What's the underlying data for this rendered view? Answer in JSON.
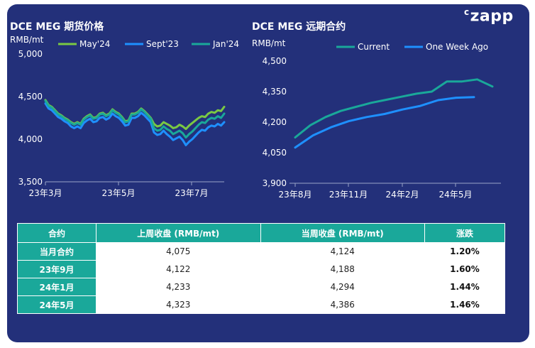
{
  "logo": "zapp",
  "charts": {
    "left": {
      "title": "DCE MEG 期货价格"
    },
    "right": {
      "title": "DCE MEG 远期合约"
    }
  },
  "chart_data": [
    {
      "type": "line",
      "title": "DCE MEG 期货价格",
      "ylabel": "RMB/mt",
      "ylim": [
        3500,
        5000
      ],
      "yticks": [
        "3,500",
        "4,000",
        "4,500",
        "5,000"
      ],
      "xticks": [
        "23年3月",
        "23年5月",
        "23年7月"
      ],
      "legend": "top",
      "series": [
        {
          "name": "May'24",
          "color": "#7ac943",
          "values": [
            4460,
            4400,
            4380,
            4340,
            4300,
            4280,
            4250,
            4230,
            4200,
            4180,
            4200,
            4180,
            4240,
            4270,
            4290,
            4250,
            4260,
            4300,
            4310,
            4280,
            4300,
            4350,
            4320,
            4300,
            4260,
            4210,
            4220,
            4300,
            4300,
            4320,
            4360,
            4330,
            4290,
            4250,
            4180,
            4150,
            4160,
            4200,
            4180,
            4160,
            4130,
            4140,
            4170,
            4150,
            4120,
            4160,
            4190,
            4220,
            4250,
            4270,
            4260,
            4300,
            4320,
            4310,
            4340,
            4330,
            4380
          ]
        },
        {
          "name": "Sept'23",
          "color": "#1e90ff",
          "values": [
            4420,
            4360,
            4340,
            4300,
            4260,
            4240,
            4210,
            4190,
            4150,
            4130,
            4150,
            4130,
            4190,
            4220,
            4240,
            4200,
            4210,
            4250,
            4260,
            4230,
            4250,
            4300,
            4270,
            4250,
            4210,
            4160,
            4170,
            4250,
            4250,
            4270,
            4310,
            4280,
            4240,
            4200,
            4080,
            4050,
            4060,
            4100,
            4060,
            4030,
            3990,
            4010,
            4030,
            3990,
            3930,
            3970,
            4000,
            4040,
            4080,
            4110,
            4100,
            4140,
            4160,
            4150,
            4180,
            4160,
            4200
          ]
        },
        {
          "name": "Jan'24",
          "color": "#1aa89a",
          "values": [
            4450,
            4390,
            4370,
            4330,
            4290,
            4270,
            4240,
            4220,
            4190,
            4170,
            4190,
            4170,
            4230,
            4260,
            4280,
            4240,
            4250,
            4290,
            4300,
            4270,
            4290,
            4340,
            4310,
            4290,
            4250,
            4200,
            4210,
            4290,
            4290,
            4310,
            4350,
            4320,
            4280,
            4240,
            4130,
            4100,
            4110,
            4150,
            4120,
            4100,
            4060,
            4080,
            4100,
            4070,
            4020,
            4060,
            4090,
            4130,
            4170,
            4200,
            4190,
            4230,
            4250,
            4240,
            4270,
            4250,
            4300
          ]
        }
      ]
    },
    {
      "type": "line",
      "title": "DCE MEG 远期合约",
      "ylabel": "RMB/mt",
      "ylim": [
        3900,
        4500
      ],
      "yticks": [
        "3,900",
        "4,050",
        "4,200",
        "4,350",
        "4,500"
      ],
      "xticks": [
        "23年8月",
        "23年11月",
        "24年2月",
        "24年5月"
      ],
      "legend": "top",
      "series": [
        {
          "name": "Current",
          "color": "#1aa89a",
          "values": [
            4125,
            4185,
            4225,
            4255,
            4275,
            4295,
            4310,
            4325,
            4340,
            4350,
            4400,
            4400,
            4410,
            4375
          ]
        },
        {
          "name": "One Week Ago",
          "color": "#1e90ff",
          "values": [
            4075,
            4135,
            4175,
            4205,
            4225,
            4240,
            4262,
            4280,
            4308,
            4320,
            4323
          ]
        }
      ]
    }
  ],
  "table": {
    "headers": [
      "合约",
      "上周收盘 (RMB/mt)",
      "当周收盘 (RMB/mt)",
      "涨跌"
    ],
    "rows": [
      [
        "当月合约",
        "4,075",
        "4,124",
        "1.20%"
      ],
      [
        "23年9月",
        "4,122",
        "4,188",
        "1.60%"
      ],
      [
        "24年1月",
        "4,233",
        "4,294",
        "1.44%"
      ],
      [
        "24年5月",
        "4,323",
        "4,386",
        "1.46%"
      ]
    ]
  }
}
